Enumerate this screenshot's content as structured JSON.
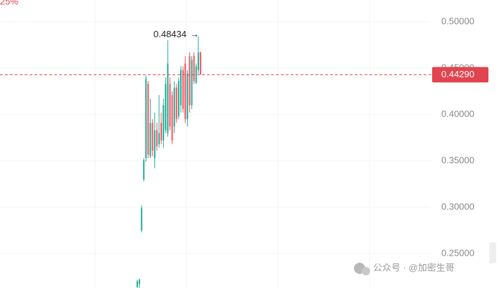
{
  "chart_data": {
    "type": "candlestick",
    "corner_label": "25%",
    "watermark": "公众号 · @加密生哥",
    "ylim": [
      0.2129,
      0.5235
    ],
    "yticks": [
      {
        "value": 0.25,
        "label": "0.25000"
      },
      {
        "value": 0.3,
        "label": "0.30000"
      },
      {
        "value": 0.35,
        "label": "0.35000"
      },
      {
        "value": 0.4,
        "label": "0.40000"
      },
      {
        "value": 0.45,
        "label": "0.45000"
      },
      {
        "value": 0.5,
        "label": "0.50000"
      }
    ],
    "grid": true,
    "up_color": "#22ab94",
    "down_color": "#f7525f",
    "open": [
      0.214,
      0.217,
      0.275,
      0.33,
      0.353,
      0.433,
      0.355,
      0.391,
      0.353,
      0.383,
      0.368,
      0.391,
      0.372,
      0.383,
      0.38,
      0.433,
      0.421,
      0.387,
      0.429,
      0.398,
      0.41,
      0.448,
      0.455,
      0.395,
      0.463,
      0.41,
      0.463,
      0.434,
      0.448,
      0.467
    ],
    "high": [
      0.222,
      0.223,
      0.302,
      0.353,
      0.442,
      0.436,
      0.417,
      0.395,
      0.402,
      0.391,
      0.421,
      0.402,
      0.417,
      0.44,
      0.48,
      0.44,
      0.425,
      0.436,
      0.433,
      0.44,
      0.452,
      0.452,
      0.463,
      0.448,
      0.467,
      0.463,
      0.467,
      0.455,
      0.48434,
      0.468
    ],
    "low": [
      0.213,
      0.213,
      0.273,
      0.328,
      0.349,
      0.353,
      0.353,
      0.355,
      0.342,
      0.361,
      0.364,
      0.368,
      0.364,
      0.38,
      0.376,
      0.383,
      0.368,
      0.38,
      0.391,
      0.395,
      0.402,
      0.402,
      0.391,
      0.387,
      0.402,
      0.406,
      0.433,
      0.433,
      0.444,
      0.444
    ],
    "close": [
      0.22,
      0.222,
      0.299,
      0.351,
      0.439,
      0.357,
      0.391,
      0.361,
      0.383,
      0.366,
      0.38,
      0.372,
      0.41,
      0.433,
      0.455,
      0.387,
      0.372,
      0.429,
      0.395,
      0.436,
      0.448,
      0.406,
      0.395,
      0.444,
      0.41,
      0.459,
      0.436,
      0.452,
      0.467,
      0.4429
    ],
    "high_annotation": 0.48434,
    "last_price": {
      "value": 0.4429,
      "label": "0.44290"
    },
    "last_price_color": "#e0454f"
  }
}
